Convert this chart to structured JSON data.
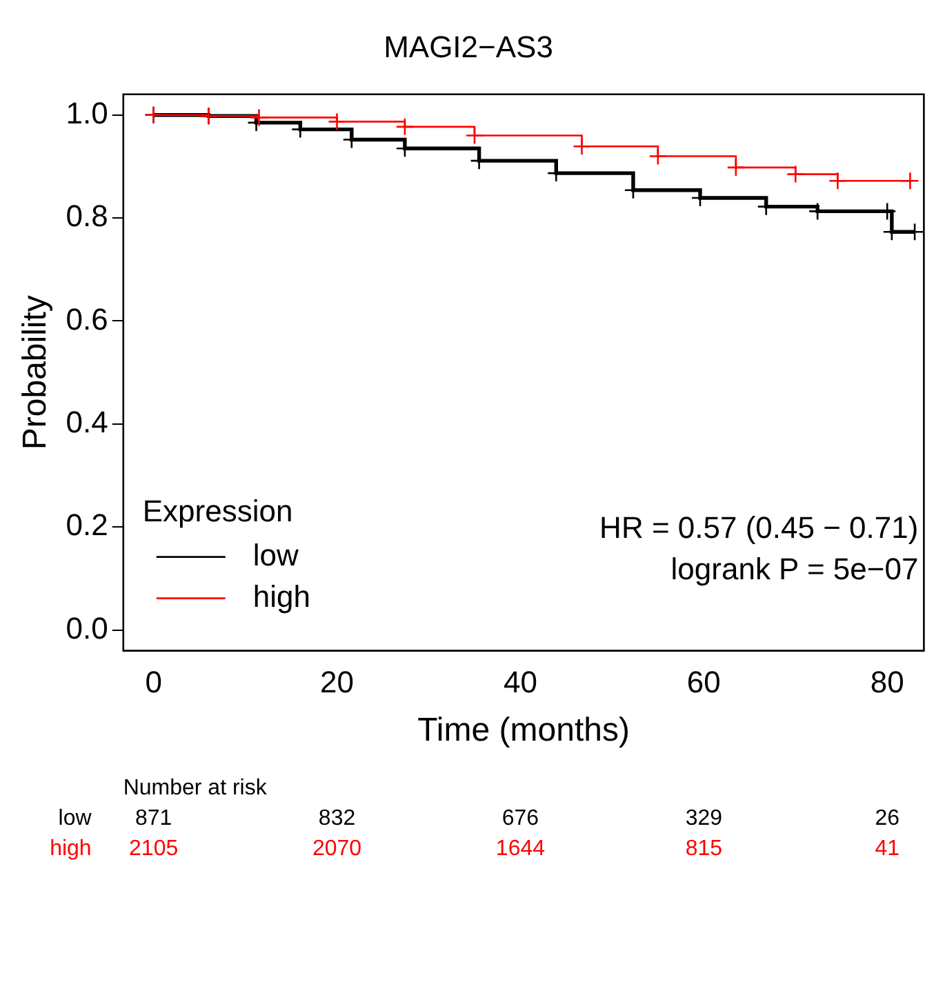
{
  "chart_data": {
    "type": "step",
    "title": "MAGI2−AS3",
    "xlabel": "Time (months)",
    "ylabel": "Probability",
    "legend_title": "Expression",
    "legend": "bottom left",
    "marker": "cross",
    "grid": false,
    "xlim": [
      -3.3,
      84
    ],
    "xticks": [
      0,
      20,
      40,
      60,
      80
    ],
    "ylim": [
      -0.04,
      1.04
    ],
    "yticks": [
      {
        "value": 0,
        "label": "0.0"
      },
      {
        "value": 0.2,
        "label": "0.2"
      },
      {
        "value": 0.4,
        "label": "0.4"
      },
      {
        "value": 0.6,
        "label": "0.6"
      },
      {
        "value": 0.8,
        "label": "0.8"
      },
      {
        "value": 1,
        "label": "1.0"
      }
    ],
    "series": [
      {
        "name": "low",
        "color": "#000000",
        "x": [
          0,
          6,
          11.2,
          16,
          21.6,
          27.4,
          35.5,
          43.9,
          52.3,
          59.6,
          66.8,
          72.4,
          80,
          80.5,
          83
        ],
        "values": [
          1,
          0.998,
          0.985,
          0.972,
          0.952,
          0.935,
          0.911,
          0.887,
          0.854,
          0.839,
          0.822,
          0.813,
          0.813,
          0.773,
          0.773
        ]
      },
      {
        "name": "high",
        "color": "#ff0000",
        "x": [
          0,
          6,
          11.5,
          20,
          27.4,
          35,
          46.7,
          55,
          63.5,
          70,
          74.6,
          82.5
        ],
        "values": [
          1,
          0.998,
          0.995,
          0.987,
          0.977,
          0.96,
          0.939,
          0.92,
          0.898,
          0.885,
          0.872,
          0.872
        ]
      }
    ],
    "annotations": [
      "HR = 0.57 (0.45 − 0.71)",
      "logrank P = 5e−07",
      "Number at risk",
      "low",
      "871",
      "832",
      "676",
      "329",
      "26",
      "high",
      "2105",
      "2070",
      "1644",
      "815",
      "41"
    ]
  }
}
